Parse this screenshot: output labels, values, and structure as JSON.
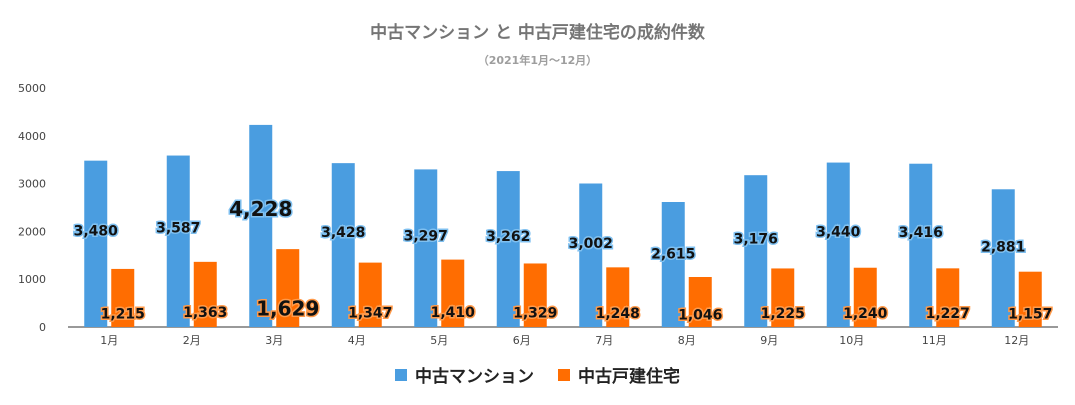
{
  "chart_data": {
    "type": "bar",
    "title": "中古マンション と 中古戸建住宅の成約件数",
    "subtitle": "（2021年1月〜12月）",
    "categories": [
      "1月",
      "2月",
      "3月",
      "4月",
      "5月",
      "6月",
      "7月",
      "8月",
      "9月",
      "10月",
      "11月",
      "12月"
    ],
    "series": [
      {
        "name": "中古マンション",
        "color": "#4a9de0",
        "values": [
          3480,
          3587,
          4228,
          3428,
          3297,
          3262,
          3002,
          2615,
          3176,
          3440,
          3416,
          2881
        ],
        "labels": [
          "3,480",
          "3,587",
          "4,228",
          "3,428",
          "3,297",
          "3,262",
          "3,002",
          "2,615",
          "3,176",
          "3,440",
          "3,416",
          "2,881"
        ]
      },
      {
        "name": "中古戸建住宅",
        "color": "#ff6d01",
        "values": [
          1215,
          1363,
          1629,
          1347,
          1410,
          1329,
          1248,
          1046,
          1225,
          1240,
          1227,
          1157
        ],
        "labels": [
          "1,215",
          "1,363",
          "1,629",
          "1,347",
          "1,410",
          "1,329",
          "1,248",
          "1,046",
          "1,225",
          "1,240",
          "1,227",
          "1,157"
        ]
      }
    ],
    "y_ticks": [
      "0",
      "1000",
      "2000",
      "3000",
      "4000",
      "5000"
    ],
    "ylim": [
      0,
      5000
    ],
    "grid": false,
    "legend": "bottom"
  }
}
